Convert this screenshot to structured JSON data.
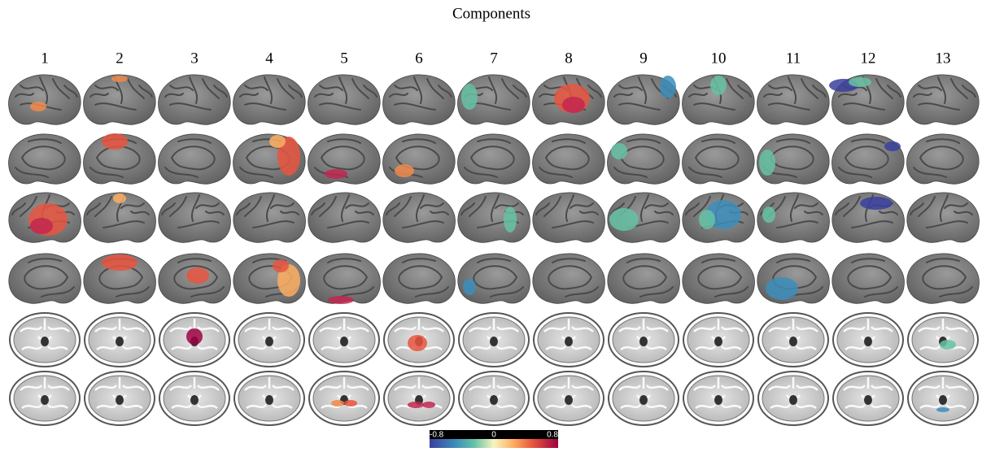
{
  "title": "Components",
  "components": [
    "1",
    "2",
    "3",
    "4",
    "5",
    "6",
    "7",
    "8",
    "9",
    "10",
    "11",
    "12",
    "13"
  ],
  "colorbar": {
    "ticks": [
      -0.8,
      0,
      0.8
    ]
  }
}
